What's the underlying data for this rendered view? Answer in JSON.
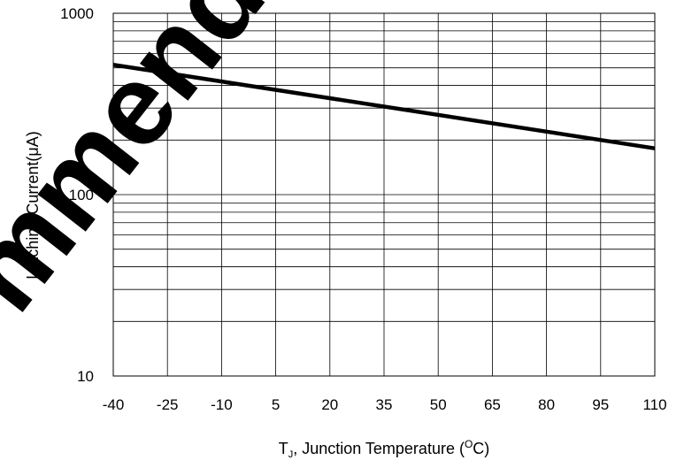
{
  "watermark_text": "mmended",
  "chart_data": {
    "type": "line",
    "title": "",
    "xlabel_main": "T",
    "xlabel_sub": "J",
    "xlabel_rest": ", Junction Temperature (",
    "xlabel_sup": "O",
    "xlabel_end": "C)",
    "ylabel": "Latching Current(μA)",
    "x_ticks": [
      "-40",
      "-25",
      "-10",
      "5",
      "20",
      "35",
      "50",
      "65",
      "80",
      "95",
      "110"
    ],
    "x_tick_values": [
      -40,
      -25,
      -10,
      5,
      20,
      35,
      50,
      65,
      80,
      95,
      110
    ],
    "y_ticks": [
      "10",
      "100",
      "1000"
    ],
    "y_tick_values": [
      10,
      100,
      1000
    ],
    "xlim": [
      -40,
      110
    ],
    "ylim": [
      10,
      1000
    ],
    "y_scale": "log",
    "grid": true,
    "series": [
      {
        "x": [
          -40,
          110
        ],
        "y": [
          520,
          180
        ]
      }
    ],
    "colors": {
      "line": "#000000",
      "grid": "#000000",
      "background": "#ffffff"
    }
  }
}
